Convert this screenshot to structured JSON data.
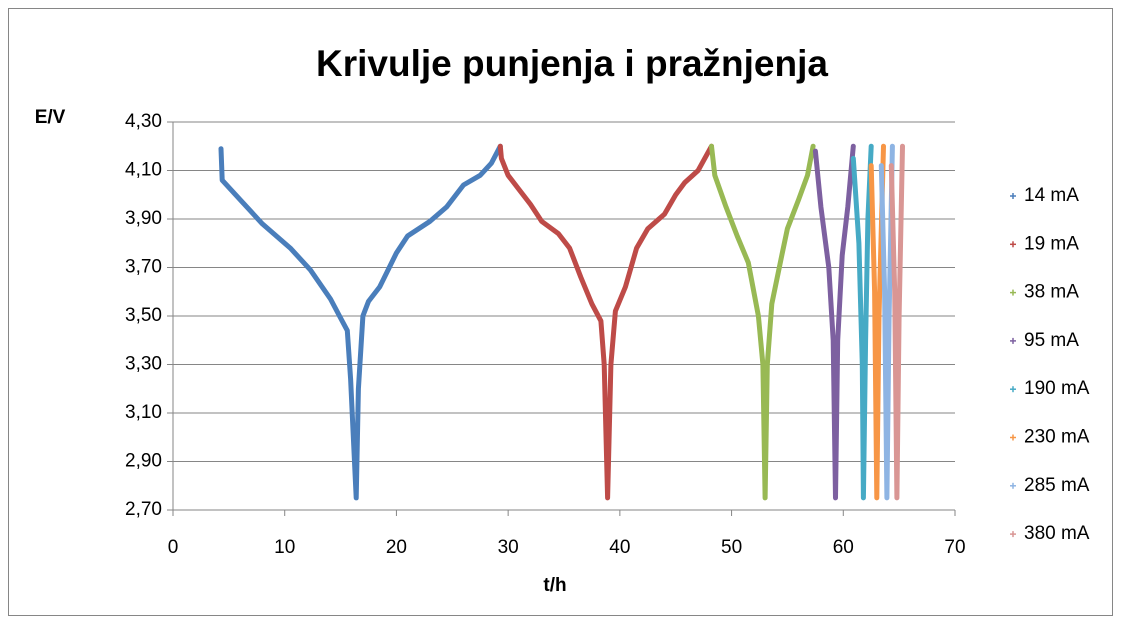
{
  "chart_data": {
    "type": "line",
    "title": "Krivulje punjenja i pražnjenja",
    "y_label": "E/V",
    "x_label": "t/h",
    "xlim": [
      0,
      70
    ],
    "xticks": [
      0,
      10,
      20,
      30,
      40,
      50,
      60,
      70
    ],
    "ylim": [
      2.7,
      4.3
    ],
    "yticks": [
      {
        "value": 2.7,
        "label": "2,70"
      },
      {
        "value": 2.9,
        "label": "2,90"
      },
      {
        "value": 3.1,
        "label": "3,10"
      },
      {
        "value": 3.3,
        "label": "3,30"
      },
      {
        "value": 3.5,
        "label": "3,50"
      },
      {
        "value": 3.7,
        "label": "3,70"
      },
      {
        "value": 3.9,
        "label": "3,90"
      },
      {
        "value": 4.1,
        "label": "4,10"
      },
      {
        "value": 4.3,
        "label": "4,30"
      }
    ],
    "grid": true,
    "legend": "right",
    "series": [
      {
        "name": "14 mA",
        "color": "#4a7ebb",
        "x": [
          4.3,
          4.4,
          6.0,
          8.0,
          10.5,
          12.3,
          14.1,
          14.9,
          15.6,
          15.9,
          16.4,
          16.6,
          17.0,
          17.5,
          18.5,
          20.0,
          21.0,
          23.0,
          24.5,
          26.0,
          27.5,
          28.5,
          29.3
        ],
        "values": [
          4.19,
          4.06,
          3.98,
          3.88,
          3.78,
          3.69,
          3.57,
          3.5,
          3.44,
          3.24,
          2.75,
          3.2,
          3.5,
          3.56,
          3.62,
          3.76,
          3.83,
          3.89,
          3.95,
          4.04,
          4.08,
          4.13,
          4.2
        ]
      },
      {
        "name": "19 mA",
        "color": "#be4b48",
        "x": [
          29.3,
          29.4,
          30.0,
          31.0,
          32.0,
          33.0,
          34.5,
          35.5,
          36.5,
          37.5,
          38.3,
          38.6,
          38.9,
          39.2,
          39.6,
          40.5,
          41.5,
          42.5,
          44.0,
          45.0,
          45.8,
          47.0,
          48.2
        ],
        "values": [
          4.2,
          4.15,
          4.08,
          4.02,
          3.96,
          3.89,
          3.84,
          3.78,
          3.66,
          3.55,
          3.48,
          3.3,
          2.75,
          3.3,
          3.52,
          3.62,
          3.78,
          3.86,
          3.92,
          4.0,
          4.05,
          4.1,
          4.2
        ]
      },
      {
        "name": "38 mA",
        "color": "#98b954",
        "x": [
          48.2,
          48.5,
          49.5,
          50.5,
          51.5,
          52.4,
          52.8,
          53.0,
          53.2,
          53.6,
          54.5,
          55.0,
          56.0,
          56.8,
          57.3
        ],
        "values": [
          4.2,
          4.08,
          3.95,
          3.83,
          3.72,
          3.5,
          3.3,
          2.75,
          3.3,
          3.55,
          3.75,
          3.86,
          3.98,
          4.08,
          4.2
        ]
      },
      {
        "name": "95 mA",
        "color": "#7d60a0",
        "x": [
          57.5,
          58.0,
          58.7,
          59.1,
          59.3,
          59.5,
          59.9,
          60.4,
          60.9
        ],
        "values": [
          4.18,
          3.95,
          3.7,
          3.4,
          2.75,
          3.4,
          3.75,
          3.95,
          4.2
        ]
      },
      {
        "name": "190 mA",
        "color": "#46aac5",
        "x": [
          60.9,
          61.4,
          61.7,
          61.8,
          62.0,
          62.2,
          62.5
        ],
        "values": [
          4.15,
          3.8,
          3.3,
          2.75,
          3.4,
          3.9,
          4.2
        ]
      },
      {
        "name": "230 mA",
        "color": "#f79646",
        "x": [
          62.5,
          62.8,
          63.0,
          63.2,
          63.6
        ],
        "values": [
          4.12,
          3.6,
          2.75,
          3.5,
          4.2
        ]
      },
      {
        "name": "285 mA",
        "color": "#8eb4e3",
        "x": [
          63.4,
          63.7,
          63.9,
          64.1,
          64.4
        ],
        "values": [
          4.12,
          3.6,
          2.75,
          3.5,
          4.2
        ]
      },
      {
        "name": "380 mA",
        "color": "#d99694",
        "x": [
          64.3,
          64.6,
          64.8,
          65.0,
          65.3
        ],
        "values": [
          4.12,
          3.6,
          2.75,
          3.5,
          4.2
        ]
      }
    ]
  }
}
